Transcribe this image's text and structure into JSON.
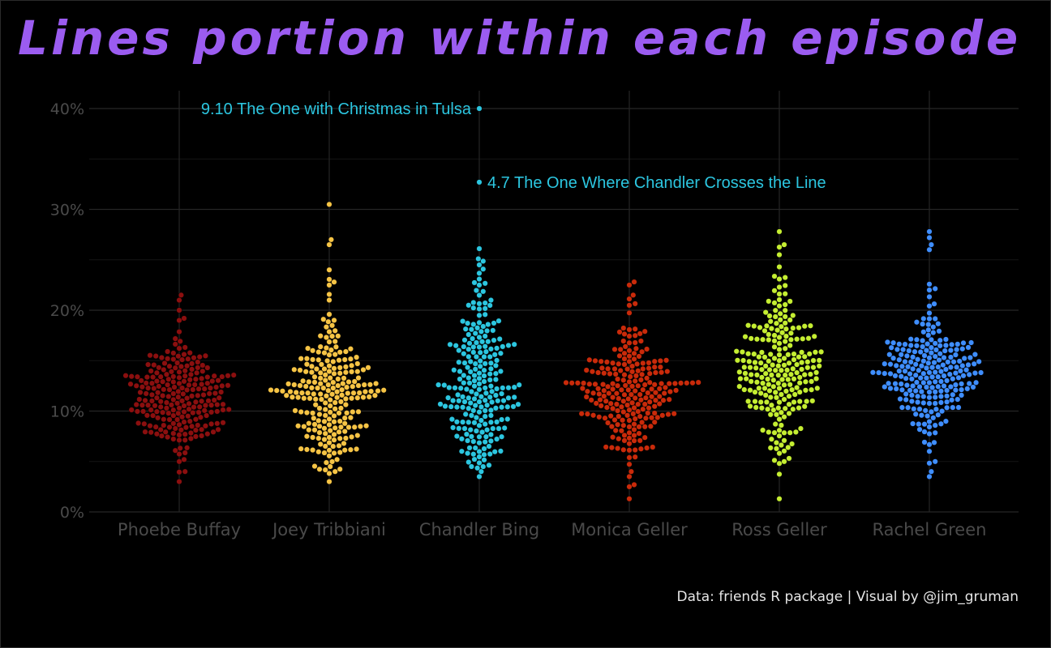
{
  "chart_data": {
    "type": "scatter",
    "subtype": "beeswarm",
    "title": "Lines portion within each episode",
    "caption": "Data: friends R package | Visual by @jim_gruman",
    "xlabel": "",
    "ylabel": "",
    "ylim": [
      0,
      0.42
    ],
    "y_ticks": [
      0,
      0.1,
      0.2,
      0.3,
      0.4
    ],
    "y_tick_labels": [
      "0%",
      "10%",
      "20%",
      "30%",
      "40%"
    ],
    "grid": true,
    "legend": "none",
    "background": "#000000",
    "categories": [
      "Phoebe Buffay",
      "Joey Tribbiani",
      "Chandler Bing",
      "Monica Geller",
      "Ross Geller",
      "Rachel Green"
    ],
    "colors": [
      "#8b0f0f",
      "#f6c445",
      "#2cc6e0",
      "#c92a0a",
      "#c5ee32",
      "#3f8eff"
    ],
    "series": [
      {
        "category": "Phoebe Buffay",
        "min": 0.03,
        "max": 0.215,
        "mode": 0.11,
        "points_shown": 230,
        "extremes": [
          0.03,
          0.04,
          0.05,
          0.19,
          0.2,
          0.21,
          0.215
        ]
      },
      {
        "category": "Joey Tribbiani",
        "min": 0.03,
        "max": 0.305,
        "mode": 0.115,
        "points_shown": 230,
        "extremes": [
          0.03,
          0.04,
          0.045,
          0.225,
          0.24,
          0.265,
          0.27,
          0.305
        ]
      },
      {
        "category": "Chandler Bing",
        "min": 0.035,
        "max": 0.4,
        "mode": 0.118,
        "points_shown": 230,
        "extremes": [
          0.035,
          0.04,
          0.045,
          0.21,
          0.225,
          0.245,
          0.327,
          0.4
        ]
      },
      {
        "category": "Monica Geller",
        "min": 0.013,
        "max": 0.228,
        "mode": 0.12,
        "points_shown": 230,
        "extremes": [
          0.013,
          0.025,
          0.035,
          0.04,
          0.215,
          0.225,
          0.228
        ]
      },
      {
        "category": "Ross Geller",
        "min": 0.013,
        "max": 0.278,
        "mode": 0.14,
        "points_shown": 230,
        "extremes": [
          0.013,
          0.048,
          0.05,
          0.255,
          0.265,
          0.278
        ]
      },
      {
        "category": "Rachel Green",
        "min": 0.035,
        "max": 0.278,
        "mode": 0.14,
        "points_shown": 230,
        "extremes": [
          0.035,
          0.04,
          0.05,
          0.26,
          0.265,
          0.272,
          0.278
        ]
      }
    ],
    "annotations": [
      {
        "text": "9.10 The One with Christmas in Tulsa",
        "category": "Chandler Bing",
        "y": 0.4,
        "side": "left",
        "color": "#2cc6e0"
      },
      {
        "text": "4.7 The One Where Chandler Crosses the Line",
        "category": "Chandler Bing",
        "y": 0.327,
        "side": "right",
        "color": "#2cc6e0"
      }
    ]
  }
}
